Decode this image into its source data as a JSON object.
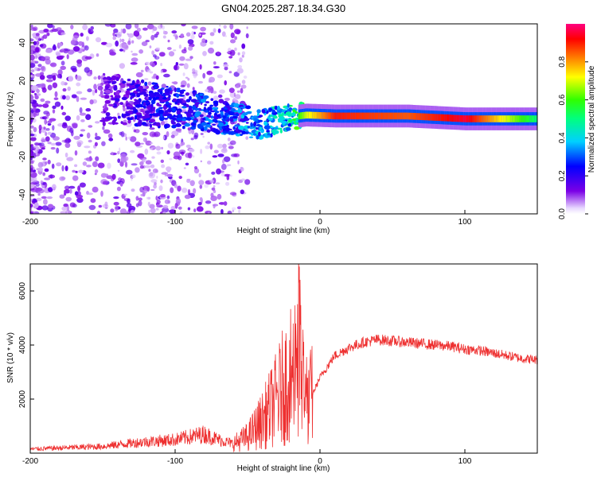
{
  "chart_data": [
    {
      "type": "heatmap",
      "title": "GN04.2025.287.18.34.G30",
      "xlabel": "Height of straight line (km)",
      "ylabel": "Frequency (Hz)",
      "xlim": [
        -200,
        150
      ],
      "ylim": [
        -50,
        50
      ],
      "x_ticks": [
        -200,
        -100,
        0,
        100
      ],
      "y_ticks": [
        -40,
        -20,
        0,
        20,
        40
      ],
      "x_tick_labels": [
        "-200",
        "-100",
        "0",
        "100"
      ],
      "y_tick_labels": [
        "-40",
        "-20",
        "0",
        "20",
        "40"
      ],
      "colorbar": {
        "label": "Normalized spectral amplitude",
        "range": [
          0,
          1
        ],
        "ticks": [
          0.0,
          0.2,
          0.4,
          0.6,
          0.8
        ],
        "tick_labels": [
          "0.0",
          "0.2",
          "0.4",
          "0.6",
          "0.8"
        ]
      },
      "ridge": {
        "description_points": [
          {
            "x": -150,
            "freq": 10,
            "amp": 0.15
          },
          {
            "x": -120,
            "freq": 8,
            "amp": 0.25
          },
          {
            "x": -90,
            "freq": 5,
            "amp": 0.3
          },
          {
            "x": -60,
            "freq": 0,
            "amp": 0.35
          },
          {
            "x": -40,
            "freq": -3,
            "amp": 0.4
          },
          {
            "x": -20,
            "freq": 1,
            "amp": 0.5
          },
          {
            "x": -10,
            "freq": 2,
            "amp": 0.7
          },
          {
            "x": 10,
            "freq": 1.5,
            "amp": 0.9
          },
          {
            "x": 60,
            "freq": 1.5,
            "amp": 0.85
          },
          {
            "x": 100,
            "freq": 0,
            "amp": 0.95
          },
          {
            "x": 150,
            "freq": 0,
            "amp": 0.5
          }
        ]
      }
    },
    {
      "type": "line",
      "xlabel": "Height of straight line (km)",
      "ylabel": "SNR (10 * v/v)",
      "xlim": [
        -200,
        150
      ],
      "ylim": [
        0,
        7000
      ],
      "x_ticks": [
        -200,
        -100,
        0,
        100
      ],
      "y_ticks": [
        2000,
        4000,
        6000
      ],
      "x_tick_labels": [
        "-200",
        "-100",
        "0",
        "100"
      ],
      "y_tick_labels": [
        "2000",
        "4000",
        "6000"
      ],
      "series": [
        {
          "name": "SNR",
          "color": "#ee3030",
          "x": [
            -200,
            -175,
            -150,
            -125,
            -100,
            -80,
            -70,
            -60,
            -50,
            -40,
            -30,
            -25,
            -20,
            -15,
            -10,
            -5,
            0,
            10,
            20,
            30,
            40,
            50,
            60,
            70,
            80,
            90,
            100,
            110,
            120,
            130,
            140,
            150
          ],
          "values": [
            150,
            200,
            250,
            400,
            500,
            700,
            500,
            350,
            600,
            1200,
            2000,
            2500,
            3000,
            4000,
            1800,
            2200,
            2800,
            3600,
            3900,
            4100,
            4200,
            4150,
            4100,
            4050,
            4000,
            3950,
            3850,
            3800,
            3700,
            3600,
            3500,
            3450
          ]
        }
      ]
    }
  ]
}
